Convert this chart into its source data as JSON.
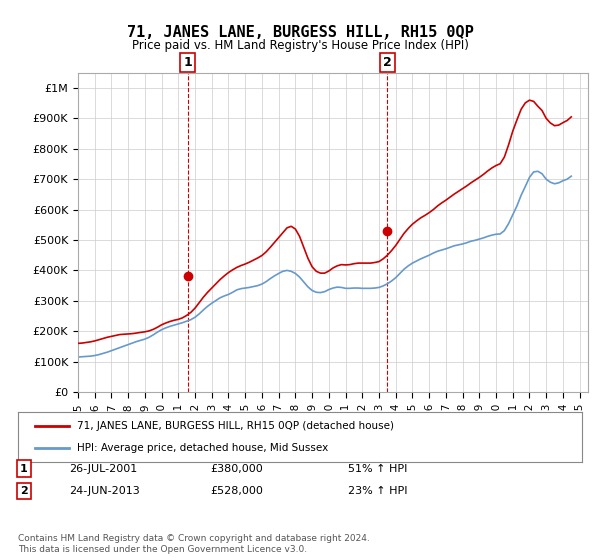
{
  "title": "71, JANES LANE, BURGESS HILL, RH15 0QP",
  "subtitle": "Price paid vs. HM Land Registry's House Price Index (HPI)",
  "ylabel_ticks": [
    "£0",
    "£100K",
    "£200K",
    "£300K",
    "£400K",
    "£500K",
    "£600K",
    "£700K",
    "£800K",
    "£900K",
    "£1M"
  ],
  "ytick_values": [
    0,
    100000,
    200000,
    300000,
    400000,
    500000,
    600000,
    700000,
    800000,
    900000,
    1000000
  ],
  "ylim": [
    0,
    1050000
  ],
  "xlim_start": 1995.0,
  "xlim_end": 2025.5,
  "marker1_x": 2001.56,
  "marker1_y": 380000,
  "marker1_label": "1",
  "marker1_date": "26-JUL-2001",
  "marker1_price": "£380,000",
  "marker1_hpi": "51% ↑ HPI",
  "marker2_x": 2013.48,
  "marker2_y": 528000,
  "marker2_label": "2",
  "marker2_date": "24-JUN-2013",
  "marker2_price": "£528,000",
  "marker2_hpi": "23% ↑ HPI",
  "legend_line1": "71, JANES LANE, BURGESS HILL, RH15 0QP (detached house)",
  "legend_line2": "HPI: Average price, detached house, Mid Sussex",
  "footer1": "Contains HM Land Registry data © Crown copyright and database right 2024.",
  "footer2": "This data is licensed under the Open Government Licence v3.0.",
  "hpi_color": "#6699cc",
  "price_color": "#cc0000",
  "marker_box_color": "#cc0000",
  "background_color": "#ffffff",
  "grid_color": "#cccccc",
  "hpi_data_x": [
    1995.0,
    1995.25,
    1995.5,
    1995.75,
    1996.0,
    1996.25,
    1996.5,
    1996.75,
    1997.0,
    1997.25,
    1997.5,
    1997.75,
    1998.0,
    1998.25,
    1998.5,
    1998.75,
    1999.0,
    1999.25,
    1999.5,
    1999.75,
    2000.0,
    2000.25,
    2000.5,
    2000.75,
    2001.0,
    2001.25,
    2001.5,
    2001.75,
    2002.0,
    2002.25,
    2002.5,
    2002.75,
    2003.0,
    2003.25,
    2003.5,
    2003.75,
    2004.0,
    2004.25,
    2004.5,
    2004.75,
    2005.0,
    2005.25,
    2005.5,
    2005.75,
    2006.0,
    2006.25,
    2006.5,
    2006.75,
    2007.0,
    2007.25,
    2007.5,
    2007.75,
    2008.0,
    2008.25,
    2008.5,
    2008.75,
    2009.0,
    2009.25,
    2009.5,
    2009.75,
    2010.0,
    2010.25,
    2010.5,
    2010.75,
    2011.0,
    2011.25,
    2011.5,
    2011.75,
    2012.0,
    2012.25,
    2012.5,
    2012.75,
    2013.0,
    2013.25,
    2013.5,
    2013.75,
    2014.0,
    2014.25,
    2014.5,
    2014.75,
    2015.0,
    2015.25,
    2015.5,
    2015.75,
    2016.0,
    2016.25,
    2016.5,
    2016.75,
    2017.0,
    2017.25,
    2017.5,
    2017.75,
    2018.0,
    2018.25,
    2018.5,
    2018.75,
    2019.0,
    2019.25,
    2019.5,
    2019.75,
    2020.0,
    2020.25,
    2020.5,
    2020.75,
    2021.0,
    2021.25,
    2021.5,
    2021.75,
    2022.0,
    2022.25,
    2022.5,
    2022.75,
    2023.0,
    2023.25,
    2023.5,
    2023.75,
    2024.0,
    2024.25,
    2024.5
  ],
  "hpi_data_y": [
    115000,
    116000,
    117000,
    118000,
    120000,
    123000,
    127000,
    131000,
    136000,
    141000,
    146000,
    151000,
    156000,
    161000,
    166000,
    170000,
    174000,
    180000,
    188000,
    197000,
    205000,
    211000,
    216000,
    220000,
    224000,
    228000,
    233000,
    238000,
    246000,
    257000,
    270000,
    282000,
    292000,
    301000,
    310000,
    316000,
    321000,
    328000,
    336000,
    340000,
    342000,
    344000,
    347000,
    350000,
    355000,
    363000,
    373000,
    382000,
    390000,
    397000,
    400000,
    397000,
    390000,
    378000,
    362000,
    346000,
    334000,
    328000,
    327000,
    330000,
    337000,
    342000,
    345000,
    344000,
    341000,
    341000,
    342000,
    342000,
    341000,
    341000,
    341000,
    342000,
    344000,
    349000,
    356000,
    365000,
    376000,
    390000,
    404000,
    415000,
    424000,
    431000,
    438000,
    444000,
    450000,
    457000,
    463000,
    467000,
    471000,
    476000,
    481000,
    484000,
    487000,
    491000,
    496000,
    499000,
    503000,
    507000,
    512000,
    516000,
    519000,
    520000,
    531000,
    554000,
    583000,
    612000,
    647000,
    676000,
    706000,
    724000,
    726000,
    718000,
    700000,
    690000,
    685000,
    688000,
    695000,
    700000,
    710000
  ],
  "price_data_x": [
    1995.0,
    1995.25,
    1995.5,
    1995.75,
    1996.0,
    1996.25,
    1996.5,
    1996.75,
    1997.0,
    1997.25,
    1997.5,
    1997.75,
    1998.0,
    1998.25,
    1998.5,
    1998.75,
    1999.0,
    1999.25,
    1999.5,
    1999.75,
    2000.0,
    2000.25,
    2000.5,
    2000.75,
    2001.0,
    2001.25,
    2001.5,
    2001.75,
    2002.0,
    2002.25,
    2002.5,
    2002.75,
    2003.0,
    2003.25,
    2003.5,
    2003.75,
    2004.0,
    2004.25,
    2004.5,
    2004.75,
    2005.0,
    2005.25,
    2005.5,
    2005.75,
    2006.0,
    2006.25,
    2006.5,
    2006.75,
    2007.0,
    2007.25,
    2007.5,
    2007.75,
    2008.0,
    2008.25,
    2008.5,
    2008.75,
    2009.0,
    2009.25,
    2009.5,
    2009.75,
    2010.0,
    2010.25,
    2010.5,
    2010.75,
    2011.0,
    2011.25,
    2011.5,
    2011.75,
    2012.0,
    2012.25,
    2012.5,
    2012.75,
    2013.0,
    2013.25,
    2013.5,
    2013.75,
    2014.0,
    2014.25,
    2014.5,
    2014.75,
    2015.0,
    2015.25,
    2015.5,
    2015.75,
    2016.0,
    2016.25,
    2016.5,
    2016.75,
    2017.0,
    2017.25,
    2017.5,
    2017.75,
    2018.0,
    2018.25,
    2018.5,
    2018.75,
    2019.0,
    2019.25,
    2019.5,
    2019.75,
    2020.0,
    2020.25,
    2020.5,
    2020.75,
    2021.0,
    2021.25,
    2021.5,
    2021.75,
    2022.0,
    2022.25,
    2022.5,
    2022.75,
    2023.0,
    2023.25,
    2023.5,
    2023.75,
    2024.0,
    2024.25,
    2024.5
  ],
  "price_data_y": [
    160000,
    161000,
    163000,
    165000,
    168000,
    172000,
    176000,
    180000,
    183000,
    186000,
    189000,
    190000,
    191000,
    192000,
    194000,
    196000,
    198000,
    201000,
    206000,
    213000,
    221000,
    227000,
    232000,
    236000,
    239000,
    244000,
    252000,
    262000,
    276000,
    294000,
    312000,
    328000,
    342000,
    356000,
    370000,
    382000,
    393000,
    402000,
    410000,
    416000,
    421000,
    427000,
    434000,
    441000,
    449000,
    461000,
    476000,
    492000,
    508000,
    524000,
    540000,
    545000,
    536000,
    512000,
    476000,
    440000,
    412000,
    397000,
    391000,
    391000,
    398000,
    408000,
    415000,
    419000,
    418000,
    419000,
    422000,
    424000,
    424000,
    424000,
    424000,
    426000,
    429000,
    438000,
    450000,
    465000,
    482000,
    502000,
    522000,
    538000,
    552000,
    563000,
    573000,
    581000,
    590000,
    600000,
    612000,
    622000,
    631000,
    641000,
    651000,
    660000,
    669000,
    678000,
    688000,
    697000,
    706000,
    716000,
    727000,
    737000,
    745000,
    751000,
    773000,
    813000,
    858000,
    895000,
    930000,
    951000,
    960000,
    956000,
    940000,
    926000,
    900000,
    885000,
    876000,
    878000,
    886000,
    893000,
    905000
  ]
}
